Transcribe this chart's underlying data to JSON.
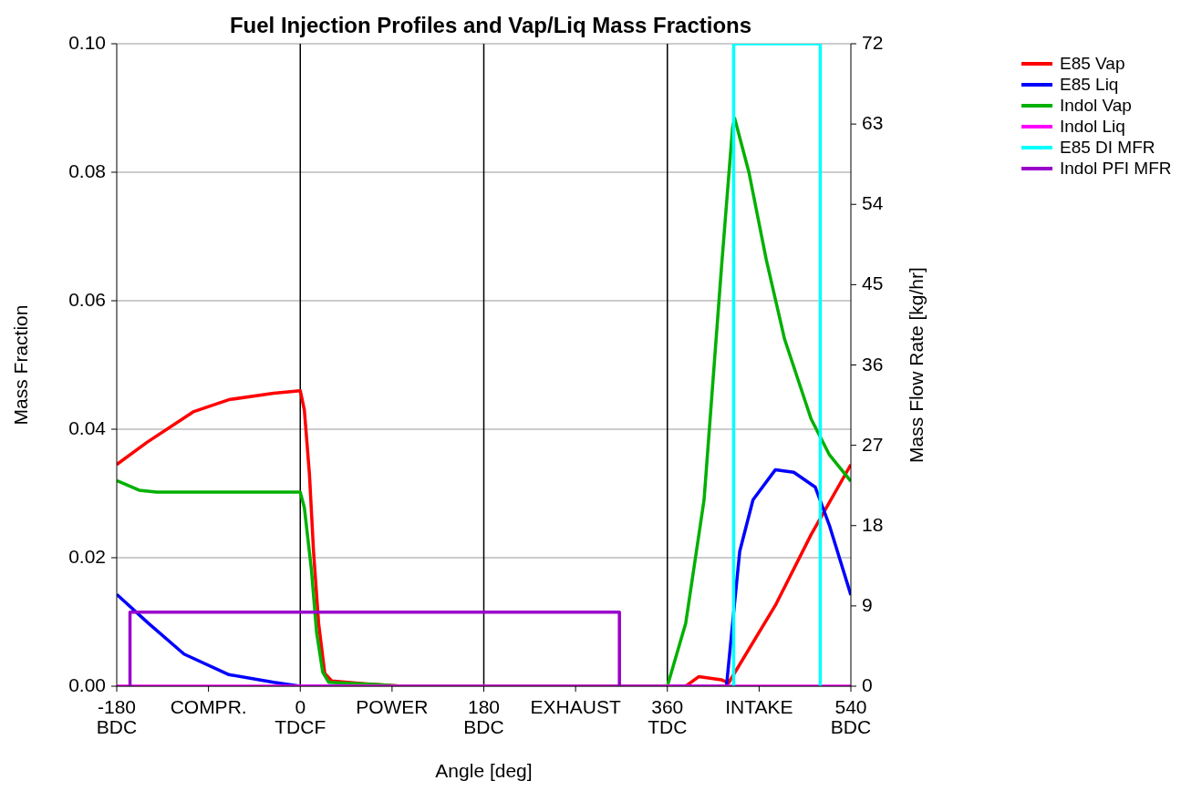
{
  "chart_data": {
    "type": "line",
    "title": "Fuel Injection Profiles and Vap/Liq Mass Fractions",
    "xlabel": "Angle [deg]",
    "ylabel": "Mass Fraction",
    "y2label": "Mass Flow Rate [kg/hr]",
    "xlim": [
      -180,
      540
    ],
    "xticks": [
      {
        "value": -180,
        "label": "-180\nBDC"
      },
      {
        "value": -90,
        "label": "COMPR."
      },
      {
        "value": 0,
        "label": "0\nTDCF"
      },
      {
        "value": 90,
        "label": "POWER"
      },
      {
        "value": 180,
        "label": "180\nBDC"
      },
      {
        "value": 270,
        "label": "EXHAUST"
      },
      {
        "value": 360,
        "label": "360\nTDC"
      },
      {
        "value": 450,
        "label": "INTAKE"
      },
      {
        "value": 540,
        "label": "540\nBDC"
      }
    ],
    "ylim": [
      0,
      0.1
    ],
    "yticks": [
      {
        "value": 0,
        "label": "0.00"
      },
      {
        "value": 0.02,
        "label": "0.02"
      },
      {
        "value": 0.04,
        "label": "0.04"
      },
      {
        "value": 0.06,
        "label": "0.06"
      },
      {
        "value": 0.08,
        "label": "0.08"
      },
      {
        "value": 0.1,
        "label": "0.10"
      }
    ],
    "y2lim": [
      0,
      72
    ],
    "y2ticks": [
      0,
      9,
      18,
      27,
      36,
      45,
      54,
      63,
      72
    ],
    "grid": "y",
    "legend": "top right",
    "marker": "none",
    "line_style": "solid",
    "ref_lines": [
      {
        "axis": "x",
        "value": 0,
        "color": "#000000"
      },
      {
        "axis": "x",
        "value": 180,
        "color": "#000000"
      },
      {
        "axis": "x",
        "value": 360,
        "color": "#000000"
      }
    ],
    "series": [
      {
        "name": "E85 Vap",
        "color": "#ff0000",
        "x": [
          -180,
          -150,
          -105,
          -70,
          -26,
          0,
          4,
          9,
          13,
          18,
          24,
          31,
          62,
          100,
          378,
          391,
          413,
          420,
          466,
          501,
          540
        ],
        "values": [
          0.0345,
          0.038,
          0.0427,
          0.0446,
          0.0456,
          0.046,
          0.043,
          0.033,
          0.021,
          0.0098,
          0.002,
          0.0008,
          0.0004,
          0,
          0,
          0.0015,
          0.001,
          0.0005,
          0.0126,
          0.0236,
          0.0345
        ]
      },
      {
        "name": "E85 Liq",
        "color": "#0000ff",
        "x": [
          -180,
          -149,
          -114,
          -70,
          -26,
          0,
          418,
          424,
          431,
          444,
          466,
          484,
          505,
          519,
          540
        ],
        "values": [
          0.0143,
          0.0098,
          0.005,
          0.0018,
          0.0006,
          0,
          0,
          0.0098,
          0.021,
          0.029,
          0.0337,
          0.0333,
          0.031,
          0.025,
          0.0142
        ]
      },
      {
        "name": "Indol Vap",
        "color": "#00b000",
        "x": [
          -180,
          -158,
          -141,
          0,
          4,
          11,
          16,
          22,
          28,
          79,
          100,
          360,
          378,
          396,
          413,
          424,
          426,
          440,
          457,
          475,
          501,
          519,
          540
        ],
        "values": [
          0.032,
          0.0305,
          0.0302,
          0.0302,
          0.0278,
          0.018,
          0.0084,
          0.0022,
          0.0006,
          0.0002,
          0,
          0,
          0.0098,
          0.029,
          0.065,
          0.087,
          0.0884,
          0.08,
          0.0664,
          0.054,
          0.0416,
          0.036,
          0.0319
        ]
      },
      {
        "name": "Indol Liq",
        "color": "#ff00ff",
        "x": [
          -180,
          540
        ],
        "values": [
          0,
          0
        ]
      },
      {
        "name": "E85 DI MFR",
        "color": "#00ffff",
        "axis": "y2",
        "x": [
          425,
          425,
          510,
          510
        ],
        "values": [
          0,
          72,
          72,
          0
        ]
      },
      {
        "name": "Indol PFI MFR",
        "color": "#9900cc",
        "axis": "y2",
        "x": [
          -167,
          -167,
          313,
          313
        ],
        "values": [
          0,
          8.3,
          8.3,
          0
        ]
      }
    ]
  }
}
